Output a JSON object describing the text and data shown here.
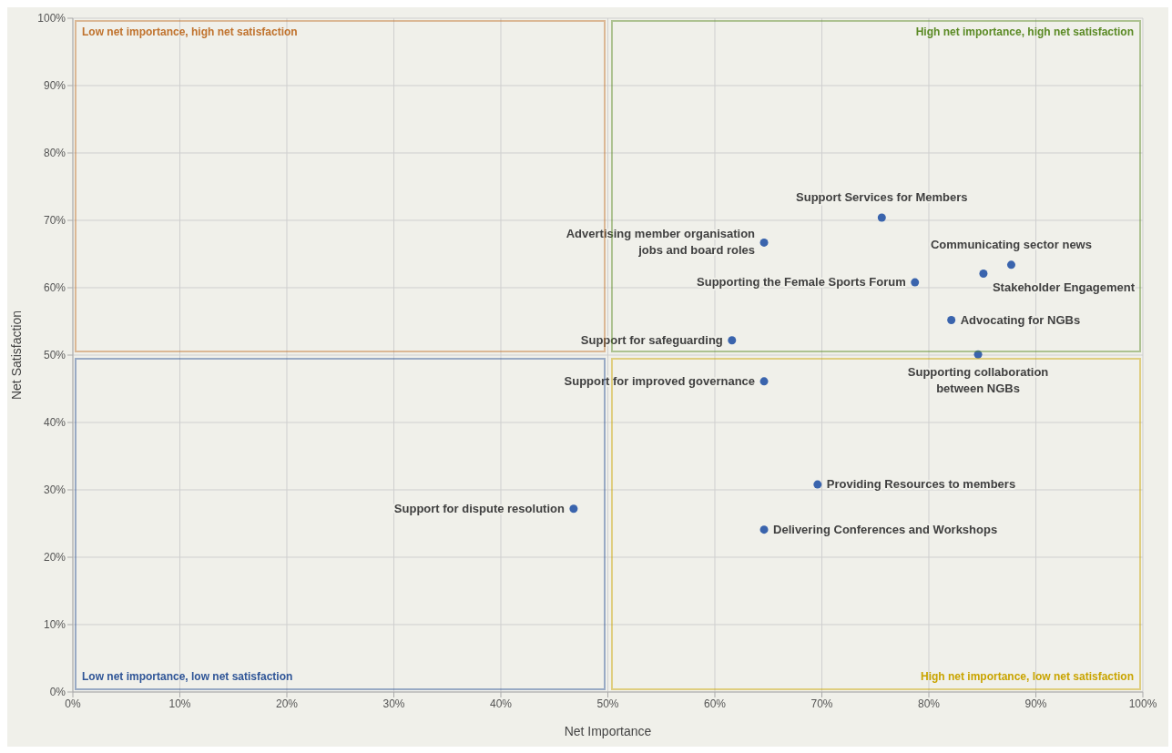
{
  "chart_data": {
    "type": "scatter",
    "xlabel": "Net Importance",
    "ylabel": "Net Satisfaction",
    "xlim": [
      0,
      100
    ],
    "ylim": [
      0,
      100
    ],
    "xticks": [
      {
        "value": 0,
        "label": "0%"
      },
      {
        "value": 10,
        "label": "10%"
      },
      {
        "value": 20,
        "label": "20%"
      },
      {
        "value": 30,
        "label": "30%"
      },
      {
        "value": 40,
        "label": "40%"
      },
      {
        "value": 50,
        "label": "50%"
      },
      {
        "value": 60,
        "label": "60%"
      },
      {
        "value": 70,
        "label": "70%"
      },
      {
        "value": 80,
        "label": "80%"
      },
      {
        "value": 90,
        "label": "90%"
      },
      {
        "value": 100,
        "label": "100%"
      }
    ],
    "yticks": [
      {
        "value": 0,
        "label": "0%"
      },
      {
        "value": 10,
        "label": "10%"
      },
      {
        "value": 20,
        "label": "20%"
      },
      {
        "value": 30,
        "label": "30%"
      },
      {
        "value": 40,
        "label": "40%"
      },
      {
        "value": 50,
        "label": "50%"
      },
      {
        "value": 60,
        "label": "60%"
      },
      {
        "value": 70,
        "label": "70%"
      },
      {
        "value": 80,
        "label": "80%"
      },
      {
        "value": 90,
        "label": "90%"
      },
      {
        "value": 100,
        "label": "100%"
      }
    ],
    "grid": true,
    "legend": false,
    "marker": "circle",
    "annotations": [
      "Low net importance, high net satisfaction",
      "High net importance, high net satisfaction",
      "Low net importance, low net satisfaction",
      "High net importance, low net satisfaction"
    ],
    "series": [
      {
        "name": "Support Services for Members",
        "color": "#3a64ad",
        "x": [
          75.6
        ],
        "values": [
          70.4
        ]
      },
      {
        "name": "Advertising member organisation\njobs and board roles",
        "color": "#3a64ad",
        "x": [
          64.6
        ],
        "values": [
          66.7
        ]
      },
      {
        "name": "Communicating sector news",
        "color": "#3a64ad",
        "x": [
          87.7
        ],
        "values": [
          63.4
        ]
      },
      {
        "name": "Stakeholder Engagement",
        "color": "#3a64ad",
        "x": [
          85.1
        ],
        "values": [
          62.1
        ]
      },
      {
        "name": "Supporting the Female Sports Forum",
        "color": "#3a64ad",
        "x": [
          78.7
        ],
        "values": [
          60.8
        ]
      },
      {
        "name": "Advocating for NGBs",
        "color": "#3a64ad",
        "x": [
          82.1
        ],
        "values": [
          55.2
        ]
      },
      {
        "name": "Support for safeguarding",
        "color": "#3a64ad",
        "x": [
          61.6
        ],
        "values": [
          52.2
        ]
      },
      {
        "name": "Supporting collaboration\nbetween NGBs",
        "color": "#3a64ad",
        "x": [
          84.6
        ],
        "values": [
          50.1
        ]
      },
      {
        "name": "Support for improved governance",
        "color": "#3a64ad",
        "x": [
          64.6
        ],
        "values": [
          46.1
        ]
      },
      {
        "name": "Providing Resources to members",
        "color": "#3a64ad",
        "x": [
          69.6
        ],
        "values": [
          30.8
        ]
      },
      {
        "name": "Support for dispute resolution",
        "color": "#3a64ad",
        "x": [
          46.8
        ],
        "values": [
          27.2
        ]
      },
      {
        "name": "Delivering Conferences and Workshops",
        "color": "#3a64ad",
        "x": [
          64.6
        ],
        "values": [
          24.1
        ]
      }
    ]
  }
}
